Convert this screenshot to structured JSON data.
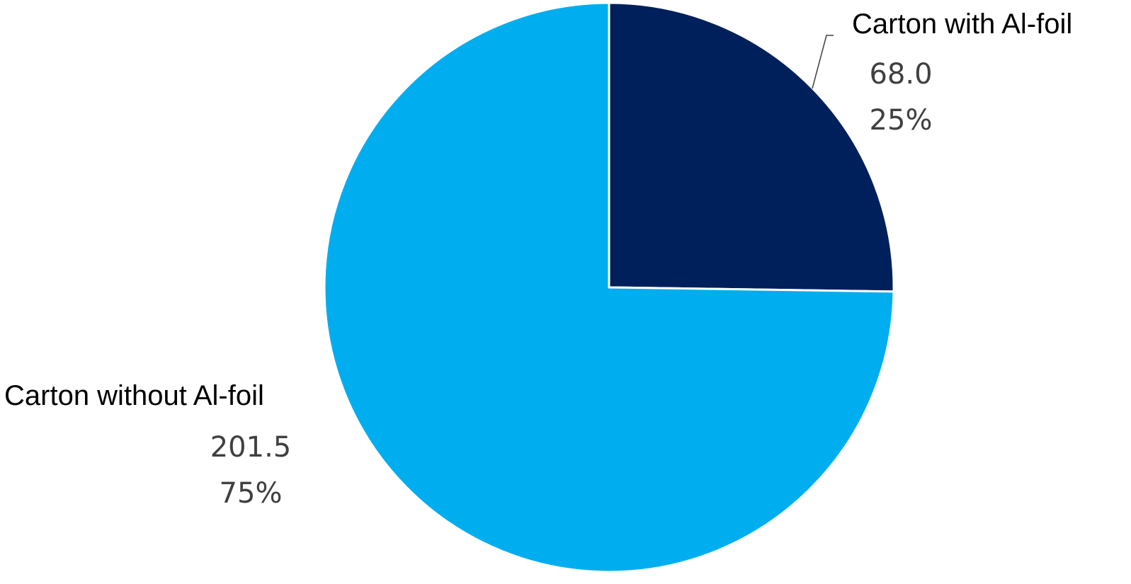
{
  "chart_data": {
    "type": "pie",
    "title": "",
    "slices": [
      {
        "label": "Carton with Al-foil",
        "value": 68.0,
        "value_text": "68.0",
        "percent": 25,
        "percent_text": "25%",
        "color": "#00205b"
      },
      {
        "label": "Carton without Al-foil",
        "value": 201.5,
        "value_text": "201.5",
        "percent": 75,
        "percent_text": "75%",
        "color": "#00aeef"
      }
    ],
    "start_angle": "12 o'clock",
    "direction": "clockwise",
    "slice_border_color": "#ffffff",
    "legend": "none",
    "data_labels": "outside, category name + value + percentage"
  }
}
